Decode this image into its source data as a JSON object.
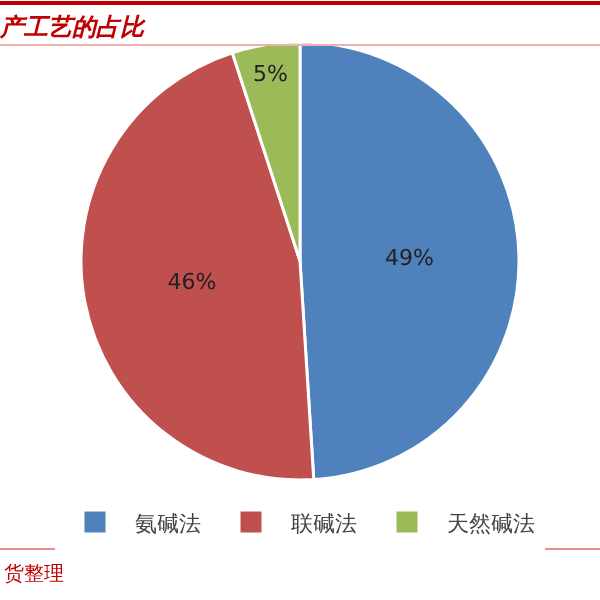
{
  "chart_data": {
    "type": "pie",
    "title": "产工艺的占比",
    "categories": [
      "氨碱法",
      "联碱法",
      "天然碱法"
    ],
    "values": [
      49,
      46,
      5
    ],
    "colors": [
      "#4f81bd",
      "#c0504d",
      "#9bbb59"
    ],
    "value_labels": [
      "49%",
      "46%",
      "5%"
    ],
    "legend": "bottom",
    "annotations": [
      "货整理"
    ]
  }
}
